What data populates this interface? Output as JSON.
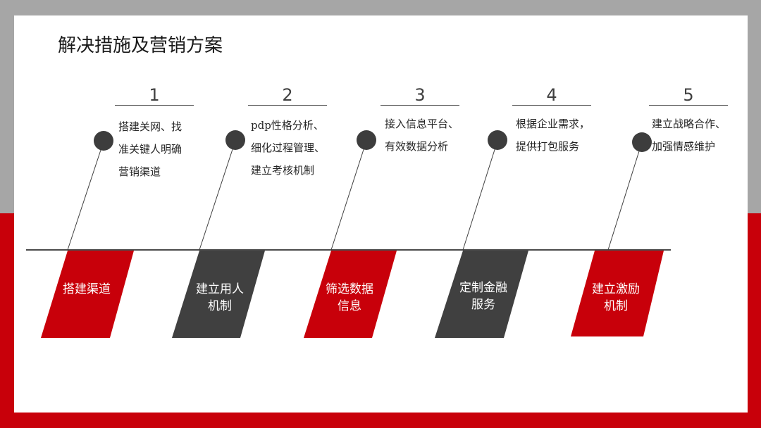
{
  "title": "解决措施及营销方案",
  "colors": {
    "red": "#c8000a",
    "dark": "#404040",
    "gray_bg": "#a6a6a6"
  },
  "steps": [
    {
      "num": "1",
      "desc": "搭建关网、找\n准关键人明确\n营销渠道",
      "flag": "搭建渠道",
      "flag_color": "red"
    },
    {
      "num": "2",
      "desc": "pdp性格分析、\n细化过程管理、\n建立考核机制",
      "flag": "建立用人\n机制",
      "flag_color": "dark"
    },
    {
      "num": "3",
      "desc": "接入信息平台、\n有效数据分析",
      "flag": "筛选数据\n信息",
      "flag_color": "red"
    },
    {
      "num": "4",
      "desc": "根据企业需求，\n提供打包服务",
      "flag": "定制金融\n服务",
      "flag_color": "dark"
    },
    {
      "num": "5",
      "desc": "建立战略合作、\n加强情感维护",
      "flag": "建立激励\n机制",
      "flag_color": "red"
    }
  ]
}
